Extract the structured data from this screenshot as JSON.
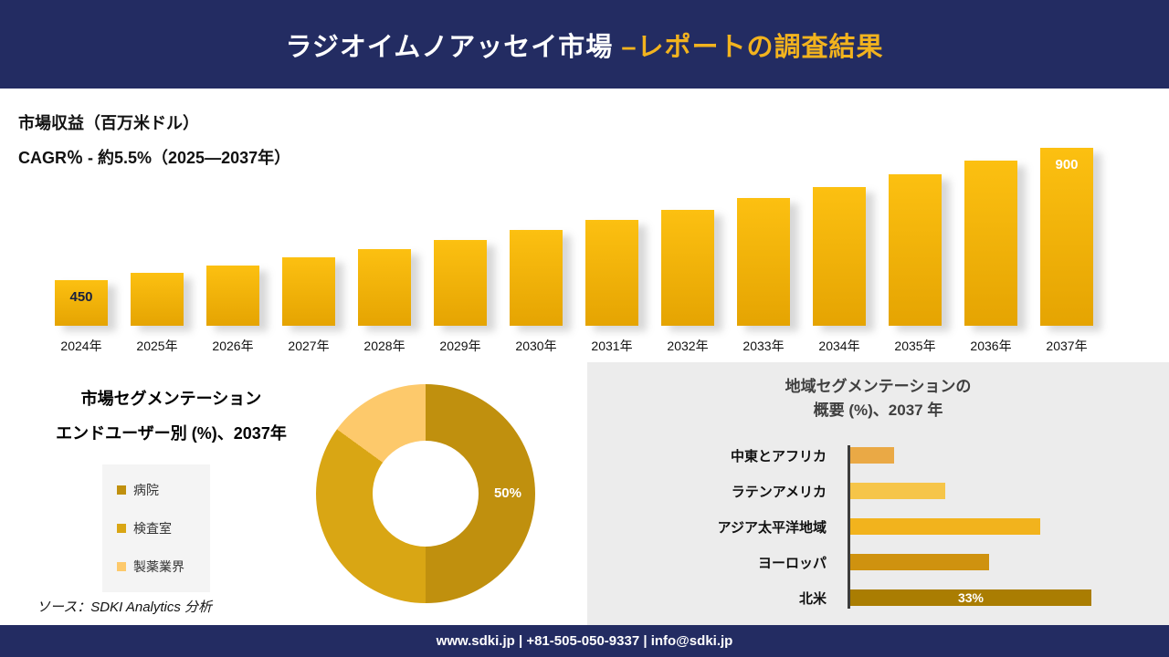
{
  "header": {
    "title_white": "ラジオイムノアッセイ市場 ",
    "title_yellow": "–レポートの調査結果"
  },
  "revenue": {
    "metric_label": "市場収益（百万米ドル）",
    "cagr_label": "CAGR％ - 約5.5%（2025―2037年）"
  },
  "segmentation": {
    "title_line1": "市場セグメンテーション",
    "title_line2": "エンドユーザー別 (%)、2037年",
    "source": "ソース：SDKI Analytics 分析"
  },
  "region": {
    "title_line1": "地域セグメンテーションの",
    "title_line2": "概要 (%)、2037 年"
  },
  "footer": {
    "text": "www.sdki.jp | +81-505-050-9337 | info@sdki.jp"
  },
  "theme": {
    "navy": "#232c62",
    "gold_accent": "#f2b31e",
    "bar_gradient_top": "#fcc011",
    "bar_gradient_bottom": "#e5a402"
  },
  "chart_data": [
    {
      "type": "bar",
      "title": "市場収益（百万米ドル）",
      "subtitle": "CAGR％ - 約5.5%（2025―2037年）",
      "categories": [
        "2024年",
        "2025年",
        "2026年",
        "2027年",
        "2028年",
        "2029年",
        "2030年",
        "2031年",
        "2032年",
        "2033年",
        "2034年",
        "2035年",
        "2036年",
        "2037年"
      ],
      "values": [
        450,
        475,
        501,
        528,
        557,
        588,
        620,
        654,
        690,
        728,
        768,
        810,
        855,
        900
      ],
      "data_labels": {
        "first": "450",
        "last": "900"
      },
      "ylim": [
        0,
        950
      ],
      "grid": false,
      "legend": "none"
    },
    {
      "type": "pie",
      "donut": true,
      "title": "市場セグメンテーション エンドユーザー別 (%)、2037年",
      "labels": [
        "病院",
        "検査室",
        "製薬業界"
      ],
      "values": [
        50,
        35,
        15
      ],
      "colors": [
        "#c0900e",
        "#d9a614",
        "#fdc96b"
      ],
      "data_label": "50%",
      "legend_position": "left"
    },
    {
      "type": "bar",
      "orientation": "horizontal",
      "title": "地域セグメンテーションの概要 (%)、2037 年",
      "categories": [
        "中東とアフリカ",
        "ラテンアメリカ",
        "アジア太平洋地域",
        "ヨーロッパ",
        "北米"
      ],
      "values": [
        6,
        13,
        26,
        19,
        33
      ],
      "colors": [
        "#eaa945",
        "#f6c549",
        "#f2b31d",
        "#cf920f",
        "#aa7d02"
      ],
      "data_labels": {
        "北米": "33%"
      },
      "grid": false
    }
  ]
}
